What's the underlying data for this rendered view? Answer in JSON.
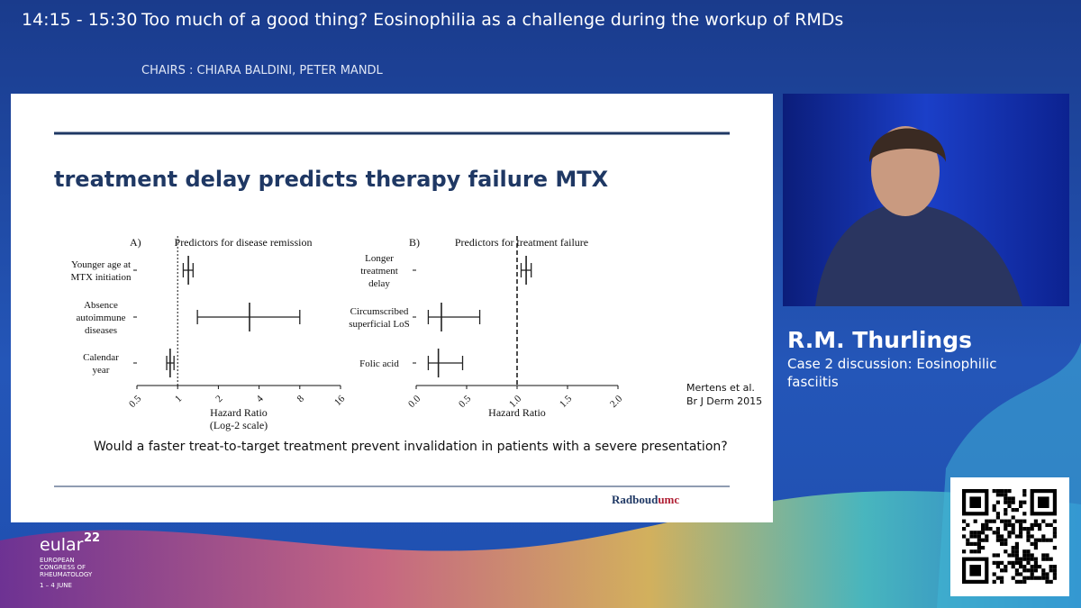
{
  "header": {
    "time": "14:15 - 15:30",
    "title": "Too much of a good thing? Eosinophilia as a challenge during the workup of RMDs",
    "chairs": "CHAIRS : CHIARA BALDINI, PETER MANDL"
  },
  "slide": {
    "title": "treatment delay predicts therapy failure MTX",
    "citation": [
      "Mertens et al.",
      "Br J Derm 2015"
    ],
    "question": "Would a faster treat-to-target treatment prevent invalidation in patients with a severe presentation?",
    "logo": [
      "Radboud",
      "umc"
    ]
  },
  "chart_data": [
    {
      "type": "forest",
      "panel": "A)",
      "title": "Predictors for disease remission",
      "categories": [
        [
          "Younger age at",
          "MTX initiation"
        ],
        [
          "Absence",
          "autoimmune",
          "diseases"
        ],
        [
          "Calendar",
          "year"
        ]
      ],
      "values": [
        1.2,
        3.4,
        0.88
      ],
      "lower": [
        1.1,
        1.4,
        0.83
      ],
      "upper": [
        1.3,
        8,
        0.94
      ],
      "xscale": "log2",
      "xlim": [
        0.5,
        16
      ],
      "xticks": [
        0.5,
        1,
        2,
        4,
        8,
        16
      ],
      "reference": 1,
      "reference_style": "dotted",
      "xlabel": [
        "Hazard Ratio",
        "(Log-2 scale)"
      ],
      "color": "#222222"
    },
    {
      "type": "forest",
      "panel": "B)",
      "title": "Predictors for treatment failure",
      "categories": [
        [
          "Longer",
          "treatment",
          "delay"
        ],
        [
          "Circumscribed",
          "superficial LoS"
        ],
        [
          "Folic acid"
        ]
      ],
      "values": [
        1.09,
        0.25,
        0.22
      ],
      "lower": [
        1.04,
        0.12,
        0.12
      ],
      "upper": [
        1.14,
        0.63,
        0.46
      ],
      "xscale": "linear",
      "xlim": [
        0,
        2
      ],
      "xticks": [
        {
          "value": 0,
          "label": "0.0"
        },
        {
          "value": 0.5,
          "label": "0.5"
        },
        {
          "value": 1,
          "label": "1.0"
        },
        {
          "value": 1.5,
          "label": "1.5"
        },
        {
          "value": 2,
          "label": "2.0"
        }
      ],
      "reference": 1,
      "reference_style": "dashed",
      "xlabel": [
        "Hazard Ratio"
      ],
      "color": "#222222"
    }
  ],
  "speaker": {
    "name": "R.M. Thurlings",
    "role": [
      "Case 2 discussion: Eosinophilic",
      "fasciitis"
    ]
  },
  "branding": {
    "name": "eular",
    "edition": "22",
    "lines": [
      "EUROPEAN",
      "CONGRESS OF",
      "RHEUMATOLOGY"
    ],
    "dates": "1 – 4 JUNE"
  }
}
